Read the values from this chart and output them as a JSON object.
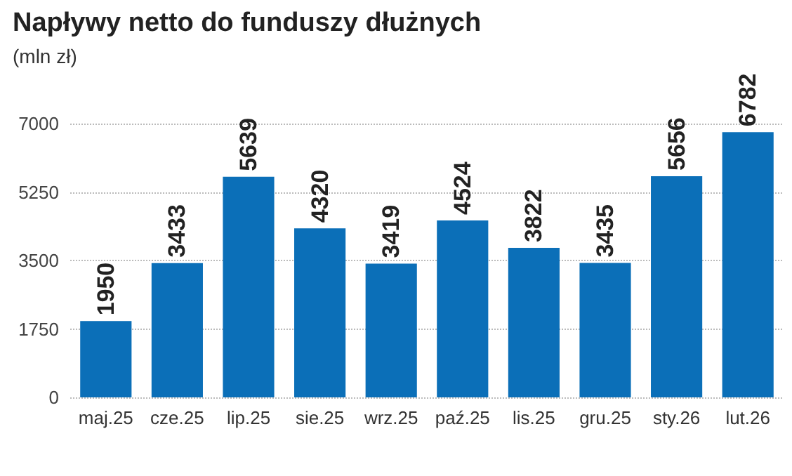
{
  "chart_data": {
    "type": "bar",
    "title": "Napływy netto do funduszy dłużnych",
    "subtitle": "(mln zł)",
    "categories": [
      "maj.25",
      "cze.25",
      "lip.25",
      "sie.25",
      "wrz.25",
      "paź.25",
      "lis.25",
      "gru.25",
      "sty.26",
      "lut.26"
    ],
    "values": [
      1950,
      3433,
      5639,
      4320,
      3419,
      4524,
      3822,
      3435,
      5656,
      6782
    ],
    "color": "#0b6fb8",
    "ylim": [
      0,
      7000
    ],
    "yticks": [
      0,
      1750,
      3500,
      5250,
      7000
    ],
    "grid": "y",
    "data_labels": true
  }
}
